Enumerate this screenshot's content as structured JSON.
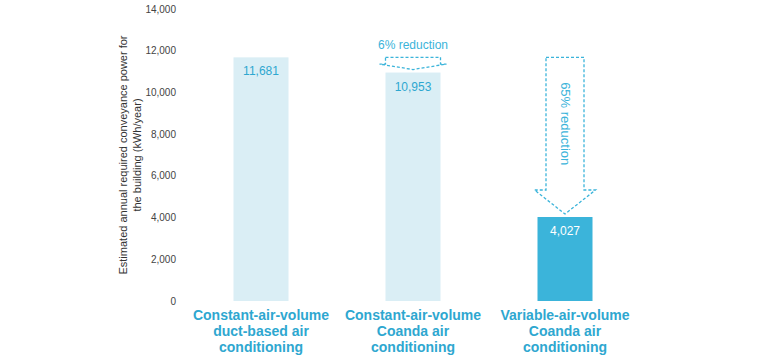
{
  "chart_data": {
    "type": "bar",
    "y_label": "Estimated annual required conveyance power for the building (kWh/year)",
    "categories": [
      "Constant-air-volume duct-based air conditioning",
      "Constant-air-volume Coanda air conditioning",
      "Variable-air-volume Coanda air conditioning"
    ],
    "values": [
      11681,
      10953,
      4027
    ],
    "value_labels": [
      "11,681",
      "10,953",
      "4,027"
    ],
    "data_labels": true,
    "colors": [
      "#daeef5",
      "#daeef5",
      "#3bb4da"
    ],
    "annotations": [
      "6% reduction",
      "65% reduction"
    ],
    "ylim": [
      0,
      14000
    ],
    "yticks": [
      0,
      {
        "value": 2000,
        "label": "2,000"
      },
      {
        "value": 4000,
        "label": "4,000"
      },
      {
        "value": 6000,
        "label": "6,000"
      },
      {
        "value": 8000,
        "label": "8,000"
      },
      {
        "value": 10000,
        "label": "10,000"
      },
      {
        "value": 12000,
        "label": "12,000"
      },
      {
        "value": 14000,
        "label": "14,000"
      }
    ],
    "grid": false
  }
}
